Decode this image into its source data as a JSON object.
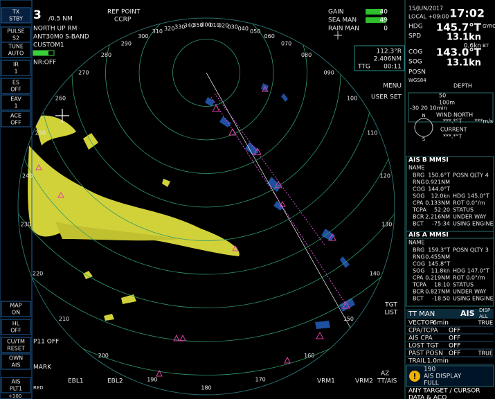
{
  "top_left": {
    "range_num": "3",
    "range": "/0.5  NM",
    "ref_point": "REF POINT",
    "ccrp": "CCRP",
    "mode": "NORTH UP RM",
    "antenna": "ANT30M0 S-BAND",
    "custom": "CUSTOM1",
    "nr": "NR:OFF"
  },
  "left_buttons": [
    [
      "TX",
      "STBY"
    ],
    [
      "PULSE",
      "S2"
    ],
    [
      "TUNE",
      "AUTO"
    ],
    [
      "IR",
      "1"
    ],
    [
      "ES",
      "OFF"
    ],
    [
      "EAV",
      "1"
    ],
    [
      "ACE",
      "OFF"
    ],
    [
      "MAP",
      "ON"
    ],
    [
      "HL",
      "OFF"
    ],
    [
      "CU/TM",
      "RESET"
    ],
    [
      "OWN",
      "AIS"
    ],
    [
      "AIS",
      "PLT1"
    ]
  ],
  "gain": [
    {
      "label": "GAIN",
      "value": 40
    },
    {
      "label": "SEA MAN",
      "value": 49
    },
    {
      "label": "RAIN MAN",
      "value": 0
    }
  ],
  "cursor": {
    "bearing": "112.3°R",
    "range": "2.406NM",
    "ttg_label": "TTG",
    "ttg": "00:11"
  },
  "menu": "MENU",
  "user_set": "USER SET",
  "clock": {
    "date": "15/JUN/2017",
    "local": "LOCAL +09:00",
    "time": "17:02"
  },
  "own_ship": {
    "hdg": "HDG",
    "hdg_value": "145.7°T",
    "hdg_src": "GYRO",
    "spd": "SPD",
    "spd_value": "13.1kn",
    "drift": "0.6kn",
    "drift_src": "BT",
    "cog": "COG",
    "cog_value": "143.0°T",
    "sog": "SOG",
    "sog_value": "13.1kn",
    "posn": "POSN",
    "datum": "WGS84"
  },
  "depth": {
    "label": "DEPTH",
    "d50": "50",
    "d100": "100m",
    "scale": "-30 20 10min"
  },
  "wind": {
    "label": "WIND NORTH",
    "dir": "***.*°T",
    "speed": "***m/s",
    "current": "CURRENT",
    "current_dir": "***.*°T",
    "north": "N",
    "south": "S"
  },
  "ais_b": {
    "header": "AIS B   MMSI",
    "name": "NAME",
    "rows": [
      [
        "BRG",
        "150.6°T"
      ],
      [
        "RNG",
        "0.921NM"
      ],
      [
        "COG",
        "144.0°T"
      ],
      [
        "SOG",
        "12.0kn"
      ],
      [
        "CPA",
        "0.133NM"
      ],
      [
        "TCPA",
        "52:20"
      ],
      [
        "BCR",
        "2.216NM"
      ],
      [
        "BCT",
        "-75:34"
      ]
    ],
    "extra": [
      "POSN QLTY 4",
      "HDG 145.0°T",
      "ROT   0.0°/m",
      "STATUS",
      "UNDER WAY",
      "USING ENGINE"
    ]
  },
  "ais_a": {
    "header": "AIS A   MMSI",
    "name": "NAME",
    "rows": [
      [
        "BRG",
        "159.3°T"
      ],
      [
        "RNG",
        "0.455NM"
      ],
      [
        "COG",
        "145.8°T"
      ],
      [
        "SOG",
        "11.8kn"
      ],
      [
        "CPA",
        "0.219NM"
      ],
      [
        "TCPA",
        "18:10"
      ],
      [
        "BCR",
        "0.827NM"
      ],
      [
        "BCT",
        "-18:50"
      ]
    ],
    "extra": [
      "POSN QLTY 3",
      "HDG 147.0°T",
      "ROT   0.0°/m",
      "STATUS",
      "UNDER WAY",
      "USING ENGINE"
    ]
  },
  "tt": {
    "man": "TT MAN",
    "ais": "AIS",
    "disp": "DISP",
    "all": "ALL"
  },
  "settings": [
    [
      "VECTOR",
      "6min",
      "TRUE"
    ],
    [
      "CPA/TCPA",
      "OFF",
      ""
    ],
    [
      "AIS CPA",
      "OFF",
      ""
    ],
    [
      "LOST TGT",
      "OFF",
      ""
    ],
    [
      "PAST POSN",
      "OFF",
      "TRUE"
    ],
    [
      "TRAIL",
      "1.0min",
      ""
    ]
  ],
  "alert": {
    "code": "190",
    "line1": "AIS DISPLAY",
    "line2": "FULL",
    "hint1": "ANY TARGET / CURSOR",
    "hint2": "DATA & ACQ"
  },
  "bottom": {
    "ebl1": "EBL1",
    "ebl2": "EBL2",
    "vrm1": "VRM1",
    "vrm2": "VRM2",
    "tt_ais": "TT/AIS",
    "az": "AZ",
    "mark": "MARK",
    "p11": "P11 OFF",
    "tgt": "TGT",
    "list": "LIST",
    "plus100": "+100",
    "red": "RED"
  },
  "bearing_labels": [
    "000",
    "010",
    "020",
    "030",
    "040",
    "050",
    "060",
    "070",
    "080",
    "090",
    "100",
    "110",
    "120",
    "130",
    "140",
    "150",
    "160",
    "170",
    "180",
    "190",
    "200",
    "210",
    "220",
    "230",
    "240",
    "250",
    "260",
    "270",
    "280",
    "290",
    "300",
    "310",
    "320",
    "330",
    "340",
    "350"
  ]
}
